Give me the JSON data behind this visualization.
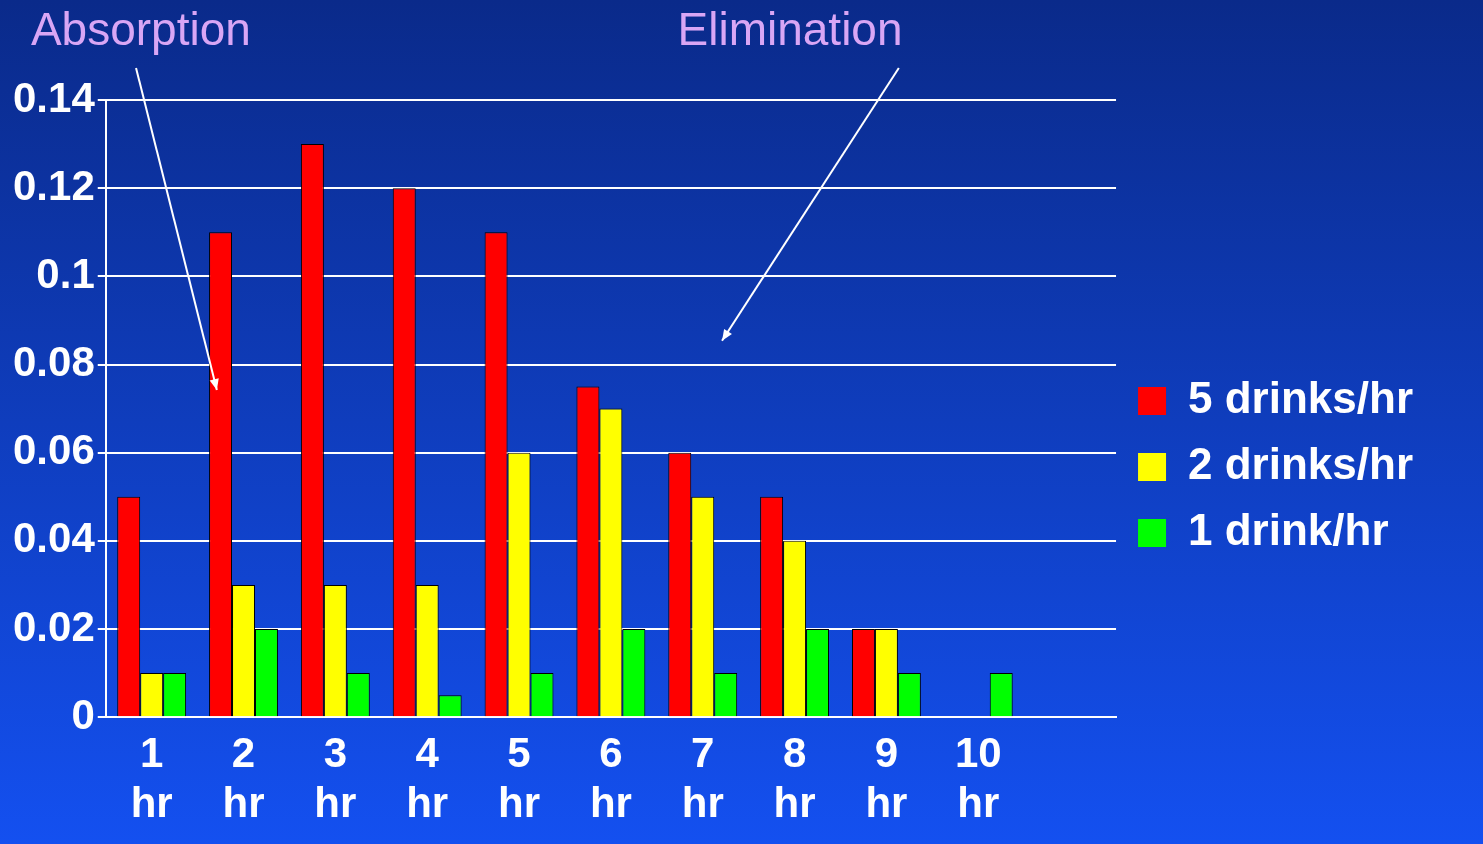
{
  "chart_data": {
    "type": "bar",
    "annotations": [
      "Absorption",
      "Elimination"
    ],
    "categories": [
      "1 hr",
      "2 hr",
      "3 hr",
      "4 hr",
      "5 hr",
      "6 hr",
      "7 hr",
      "8 hr",
      "9 hr",
      "10 hr",
      null
    ],
    "series": [
      {
        "name": "5 drinks/hr",
        "color": "#ff0000",
        "values": [
          0.05,
          0.11,
          0.13,
          0.12,
          0.11,
          0.075,
          0.06,
          0.05,
          0.02,
          0,
          null
        ]
      },
      {
        "name": "2 drinks/hr",
        "color": "#ffff00",
        "values": [
          0.01,
          0.03,
          0.03,
          0.03,
          0.06,
          0.07,
          0.05,
          0.04,
          0.02,
          0,
          null
        ]
      },
      {
        "name": "1 drink/hr",
        "color": "#00ff00",
        "values": [
          0.01,
          0.02,
          0.01,
          0.005,
          0.01,
          0.02,
          0.01,
          0.02,
          0.01,
          0.01,
          null
        ]
      }
    ],
    "ylim": [
      0,
      0.14
    ],
    "yticks": [
      0,
      0.02,
      0.04,
      0.06,
      0.08,
      0.1,
      0.12,
      0.14
    ],
    "grid": "y",
    "legend": "right"
  }
}
